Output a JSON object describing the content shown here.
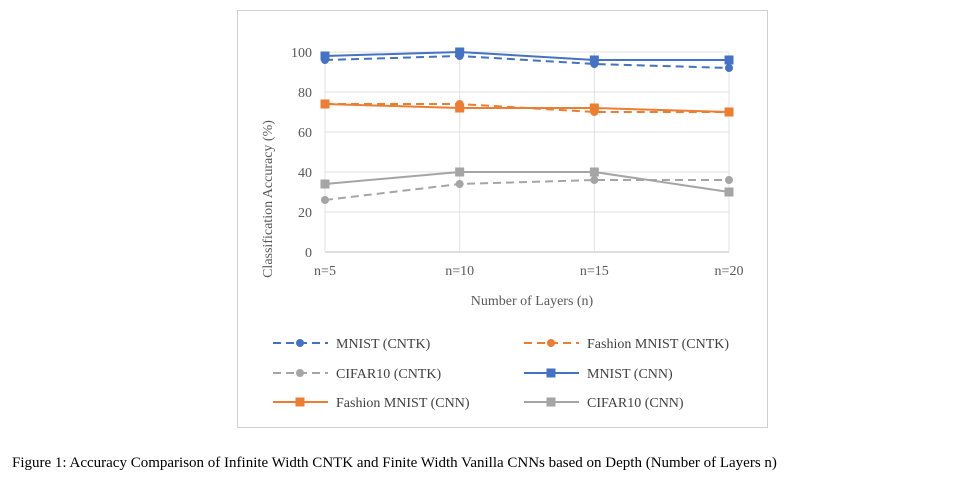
{
  "chart_data": {
    "type": "line",
    "categories": [
      "n=5",
      "n=10",
      "n=15",
      "n=20"
    ],
    "xlabel": "Number of Layers (n)",
    "ylabel": "Classification Accuracy (%)",
    "ylim": [
      0,
      100
    ],
    "yticks": [
      0,
      20,
      40,
      60,
      80,
      100
    ],
    "grid": true,
    "legend_position": "bottom",
    "series": [
      {
        "name": "MNIST (CNTK)",
        "values": [
          96,
          98,
          94,
          92
        ],
        "color": "#4472C4",
        "dashed": true,
        "marker": "circle"
      },
      {
        "name": "Fashion MNIST (CNTK)",
        "values": [
          74,
          74,
          70,
          70
        ],
        "color": "#ED7D31",
        "dashed": true,
        "marker": "circle"
      },
      {
        "name": "CIFAR10 (CNTK)",
        "values": [
          26,
          34,
          36,
          36
        ],
        "color": "#A5A5A5",
        "dashed": true,
        "marker": "circle"
      },
      {
        "name": "MNIST (CNN)",
        "values": [
          98,
          100,
          96,
          96
        ],
        "color": "#4472C4",
        "dashed": false,
        "marker": "square"
      },
      {
        "name": "Fashion MNIST (CNN)",
        "values": [
          74,
          72,
          72,
          70
        ],
        "color": "#ED7D31",
        "dashed": false,
        "marker": "square"
      },
      {
        "name": "CIFAR10 (CNN)",
        "values": [
          34,
          40,
          40,
          30
        ],
        "color": "#A5A5A5",
        "dashed": false,
        "marker": "square"
      }
    ]
  },
  "caption": "Figure 1: Accuracy Comparison of Infinite Width CNTK and Finite Width Vanilla CNNs based on Depth (Number of Layers n)"
}
